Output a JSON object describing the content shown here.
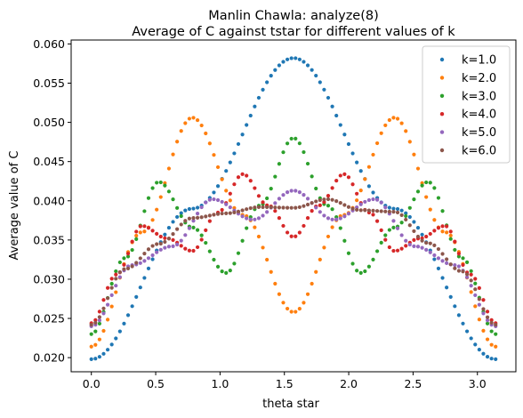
{
  "chart_data": {
    "type": "scatter",
    "title_line1": "Manlin Chawla: analyze(8)",
    "title_line2": "Average of C against tstar for different values of k",
    "xlabel": "theta star",
    "ylabel": "Average value of C",
    "xlim": [
      -0.157,
      3.299
    ],
    "ylim": [
      0.0182,
      0.0605
    ],
    "x_ticks": [
      {
        "value": 0.0,
        "label": "0.0"
      },
      {
        "value": 0.5,
        "label": "0.5"
      },
      {
        "value": 1.0,
        "label": "1.0"
      },
      {
        "value": 1.5,
        "label": "1.5"
      },
      {
        "value": 2.0,
        "label": "2.0"
      },
      {
        "value": 2.5,
        "label": "2.5"
      },
      {
        "value": 3.0,
        "label": "3.0"
      }
    ],
    "y_ticks": [
      {
        "value": 0.02,
        "label": "0.020"
      },
      {
        "value": 0.025,
        "label": "0.025"
      },
      {
        "value": 0.03,
        "label": "0.030"
      },
      {
        "value": 0.035,
        "label": "0.035"
      },
      {
        "value": 0.04,
        "label": "0.040"
      },
      {
        "value": 0.045,
        "label": "0.045"
      },
      {
        "value": 0.05,
        "label": "0.050"
      },
      {
        "value": 0.055,
        "label": "0.055"
      },
      {
        "value": 0.06,
        "label": "0.060"
      }
    ],
    "grid": false,
    "legend_position": "top-right",
    "x_range": {
      "start": 0,
      "end": 3.14159,
      "points": 100
    },
    "series": [
      {
        "name": "k=1.0",
        "k": 1,
        "color": "#1f77b4",
        "points": [
          [
            0,
            0.0198
          ],
          [
            0.785,
            0.039
          ],
          [
            1.571,
            0.0582
          ],
          [
            2.356,
            0.039
          ],
          [
            3.142,
            0.0198
          ]
        ]
      },
      {
        "name": "k=2.0",
        "k": 2,
        "color": "#ff7f0e",
        "points": [
          [
            0,
            0.0214
          ],
          [
            0.393,
            0.036
          ],
          [
            0.785,
            0.0506
          ],
          [
            1.178,
            0.0382
          ],
          [
            1.571,
            0.0258
          ],
          [
            1.963,
            0.0382
          ],
          [
            2.356,
            0.0506
          ],
          [
            2.749,
            0.036
          ],
          [
            3.142,
            0.0214
          ]
        ]
      },
      {
        "name": "k=3.0",
        "k": 3,
        "color": "#2ca02c",
        "points": [
          [
            0,
            0.023
          ],
          [
            0.262,
            0.0327
          ],
          [
            0.524,
            0.0424
          ],
          [
            0.785,
            0.0366
          ],
          [
            1.047,
            0.0308
          ],
          [
            1.309,
            0.0394
          ],
          [
            1.571,
            0.048
          ],
          [
            1.833,
            0.0394
          ],
          [
            2.094,
            0.0308
          ],
          [
            2.356,
            0.0366
          ],
          [
            2.618,
            0.0424
          ],
          [
            2.88,
            0.0327
          ],
          [
            3.142,
            0.023
          ]
        ]
      },
      {
        "name": "k=4.0",
        "k": 4,
        "color": "#d62728",
        "points": [
          [
            0,
            0.0244
          ],
          [
            0.196,
            0.0306
          ],
          [
            0.393,
            0.0368
          ],
          [
            0.589,
            0.0352
          ],
          [
            0.785,
            0.0336
          ],
          [
            0.982,
            0.0385
          ],
          [
            1.178,
            0.0434
          ],
          [
            1.374,
            0.0394
          ],
          [
            1.571,
            0.0354
          ],
          [
            1.767,
            0.0394
          ],
          [
            1.963,
            0.0434
          ],
          [
            2.16,
            0.0385
          ],
          [
            2.356,
            0.0336
          ],
          [
            2.553,
            0.0352
          ],
          [
            2.749,
            0.0368
          ],
          [
            2.945,
            0.0306
          ],
          [
            3.142,
            0.0244
          ]
        ]
      },
      {
        "name": "k=5.0",
        "k": 5,
        "color": "#9467bd",
        "points": [
          [
            0,
            0.024
          ],
          [
            0.314,
            0.0318
          ],
          [
            0.628,
            0.0342
          ],
          [
            0.942,
            0.0402
          ],
          [
            1.257,
            0.0376
          ],
          [
            1.571,
            0.0413
          ],
          [
            1.885,
            0.0376
          ],
          [
            2.199,
            0.0402
          ],
          [
            2.513,
            0.0342
          ],
          [
            2.827,
            0.0318
          ],
          [
            3.142,
            0.024
          ]
        ]
      },
      {
        "name": "k=6.0",
        "k": 6,
        "color": "#8c564b",
        "points": [
          [
            0,
            0.0242
          ],
          [
            0.262,
            0.0313
          ],
          [
            0.524,
            0.0345
          ],
          [
            0.785,
            0.0378
          ],
          [
            1.047,
            0.0384
          ],
          [
            1.309,
            0.0392
          ],
          [
            1.571,
            0.0391
          ],
          [
            1.833,
            0.0402
          ],
          [
            2.094,
            0.0388
          ],
          [
            2.356,
            0.0386
          ],
          [
            2.618,
            0.0346
          ],
          [
            2.88,
            0.031
          ],
          [
            3.142,
            0.0242
          ]
        ]
      }
    ]
  }
}
